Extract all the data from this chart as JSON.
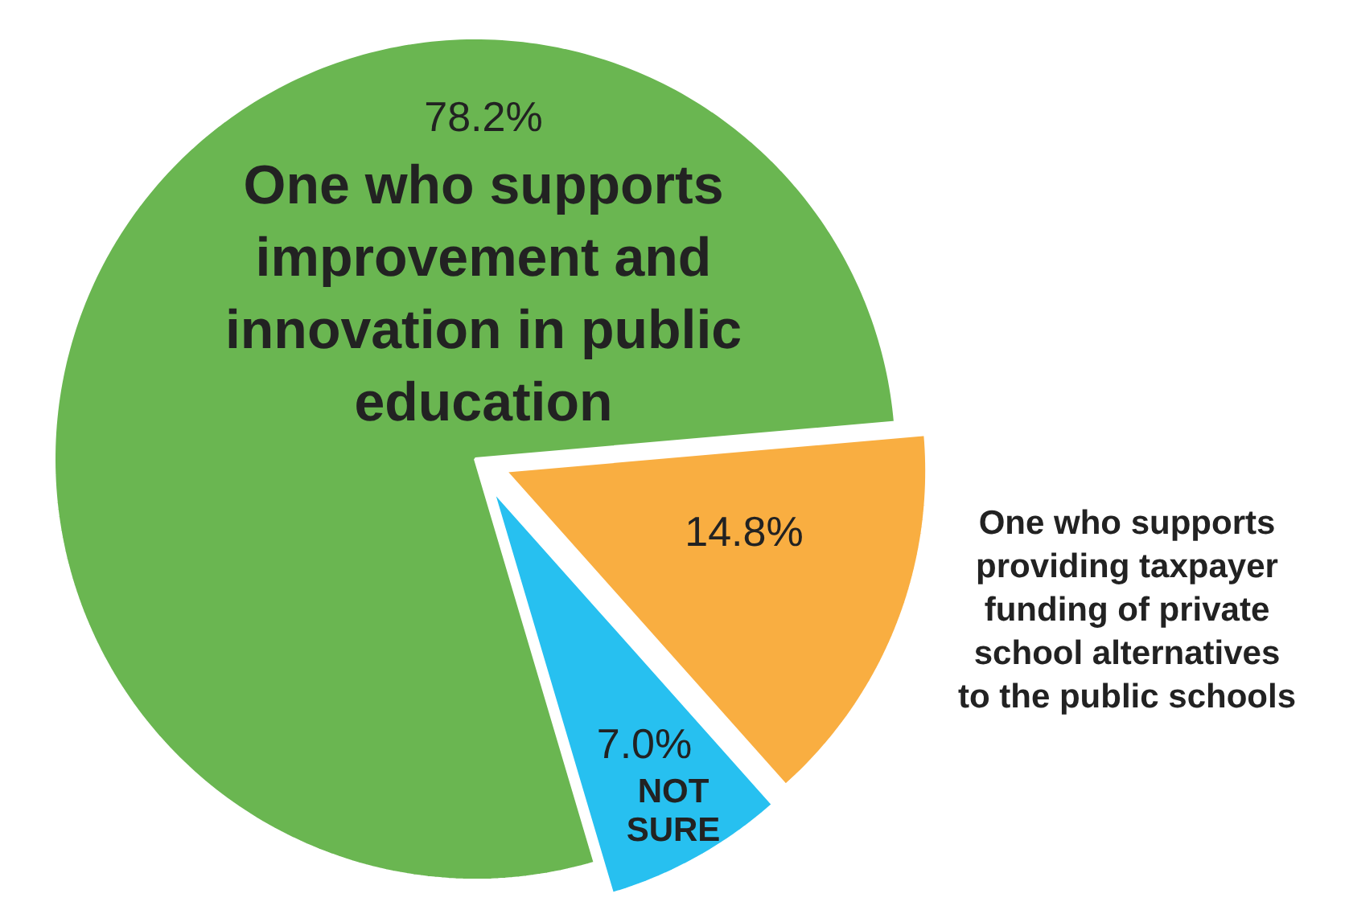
{
  "chart_data": {
    "type": "pie",
    "categories": [
      "One who supports improvement and innovation in public education",
      "One who supports providing taxpayer funding of private school alternatives to the public schools",
      "NOT SURE"
    ],
    "values": [
      78.2,
      14.8,
      7.0
    ],
    "colors": [
      "#6ab651",
      "#f9ae41",
      "#27c0f0"
    ],
    "value_labels": [
      "78.2%",
      "14.8%",
      "7.0%"
    ]
  }
}
